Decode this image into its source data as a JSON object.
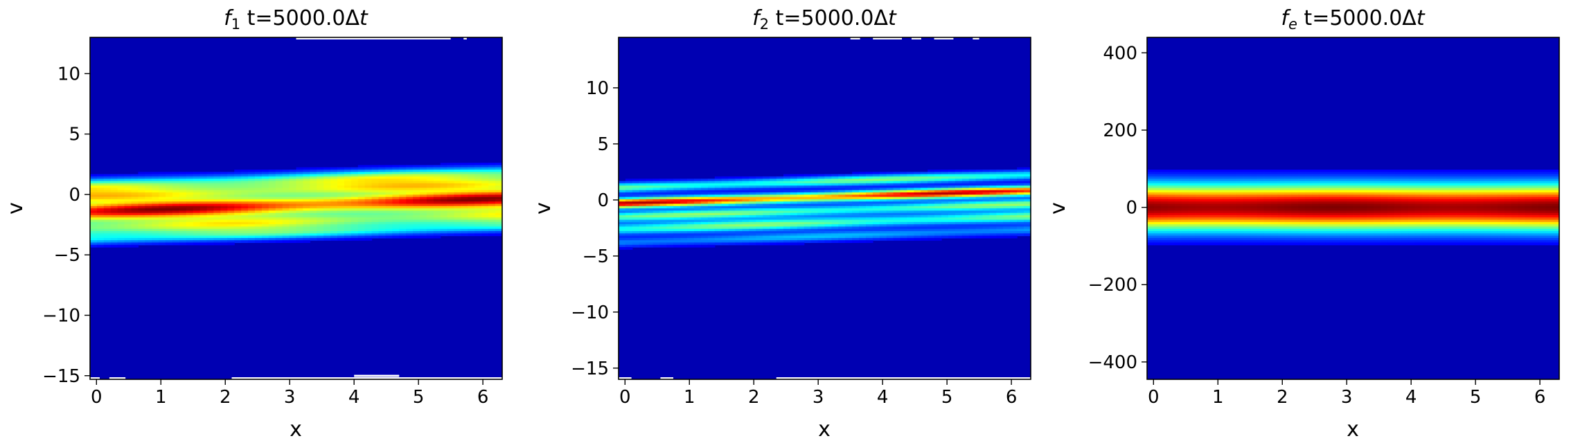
{
  "colors": {
    "background": "#ffffff",
    "colormap": "jet",
    "colormap_stops": [
      "#00007f",
      "#0000ff",
      "#007fff",
      "#00ffff",
      "#7fff7f",
      "#ffff00",
      "#ff7f00",
      "#ff0000",
      "#7f0000"
    ]
  },
  "chart_data": [
    {
      "type": "heatmap",
      "title_symbol": "f",
      "title_sub": "1",
      "title_rest": " t=5000.0Δ",
      "title_t": "t",
      "xlabel": "x",
      "ylabel": "v",
      "xlim": [
        -0.1,
        6.3
      ],
      "ylim": [
        -15.3,
        13
      ],
      "xticks": [
        0,
        1,
        2,
        3,
        4,
        5,
        6
      ],
      "yticks": [
        -15,
        -10,
        -5,
        0,
        5,
        10
      ],
      "ytick_labels": [
        "−15",
        "−10",
        "−5",
        "0",
        "5",
        "10"
      ],
      "bands": [
        {
          "v0": 0.6,
          "slope": 0.17,
          "amp": 0.55,
          "width": 0.45
        },
        {
          "v0": -0.2,
          "slope": 0.17,
          "amp": 0.45,
          "width": 0.35
        },
        {
          "v0": -1.4,
          "slope": 0.17,
          "amp": 0.95,
          "width": 0.55
        },
        {
          "v0": -2.8,
          "slope": 0.17,
          "amp": 0.55,
          "width": 0.45
        },
        {
          "v0": -3.7,
          "slope": 0.17,
          "amp": 0.35,
          "width": 0.35
        }
      ],
      "envelope": {
        "center": -0.8,
        "sigma": 2.6
      },
      "outliers": [
        {
          "x0": 3.1,
          "x1": 5.5,
          "v": 13
        },
        {
          "x0": 5.7,
          "x1": 5.75,
          "v": 13
        },
        {
          "x0": -0.1,
          "x1": 0.05,
          "v": -15.3
        },
        {
          "x0": 0.2,
          "x1": 0.45,
          "v": -15.3
        },
        {
          "x0": 2.1,
          "x1": 6.3,
          "v": -15.3
        },
        {
          "x0": 4.0,
          "x1": 4.7,
          "v": -15.1
        }
      ]
    },
    {
      "type": "heatmap",
      "title_symbol": "f",
      "title_sub": "2",
      "title_rest": " t=5000.0Δ",
      "title_t": "t",
      "xlabel": "x",
      "ylabel": "v",
      "xlim": [
        -0.1,
        6.3
      ],
      "ylim": [
        -16,
        14.5
      ],
      "xticks": [
        0,
        1,
        2,
        3,
        4,
        5,
        6
      ],
      "yticks": [
        -15,
        -10,
        -5,
        0,
        5,
        10
      ],
      "ytick_labels": [
        "−15",
        "−10",
        "−5",
        "0",
        "5",
        "10"
      ],
      "bands": [
        {
          "v0": 1.1,
          "slope": 0.18,
          "amp": 0.45,
          "width": 0.3
        },
        {
          "v0": -0.3,
          "slope": 0.18,
          "amp": 0.9,
          "width": 0.3
        },
        {
          "v0": -1.5,
          "slope": 0.18,
          "amp": 0.45,
          "width": 0.3
        },
        {
          "v0": -2.6,
          "slope": 0.18,
          "amp": 0.45,
          "width": 0.35
        },
        {
          "v0": -3.8,
          "slope": 0.18,
          "amp": 0.25,
          "width": 0.3
        }
      ],
      "envelope": {
        "center": -0.8,
        "sigma": 2.7
      },
      "outliers": [
        {
          "x0": 3.5,
          "x1": 3.65,
          "v": 14.5
        },
        {
          "x0": 3.85,
          "x1": 4.3,
          "v": 14.5
        },
        {
          "x0": 4.45,
          "x1": 4.6,
          "v": 14.5
        },
        {
          "x0": 4.8,
          "x1": 5.1,
          "v": 14.5
        },
        {
          "x0": 5.4,
          "x1": 5.5,
          "v": 14.5
        },
        {
          "x0": -0.1,
          "x1": 0.1,
          "v": -16
        },
        {
          "x0": 0.55,
          "x1": 0.75,
          "v": -16
        },
        {
          "x0": 2.35,
          "x1": 6.3,
          "v": -16
        }
      ]
    },
    {
      "type": "heatmap",
      "title_symbol": "f",
      "title_sub": "e",
      "title_rest": " t=5000.0Δ",
      "title_t": "t",
      "xlabel": "x",
      "ylabel": "v",
      "xlim": [
        -0.1,
        6.3
      ],
      "ylim": [
        -445,
        440
      ],
      "xticks": [
        0,
        1,
        2,
        3,
        4,
        5,
        6
      ],
      "yticks": [
        -400,
        -200,
        0,
        200,
        400
      ],
      "ytick_labels": [
        "−400",
        "−200",
        "0",
        "200",
        "400"
      ],
      "gaussian": {
        "center": 0,
        "sigma": 42
      }
    }
  ]
}
